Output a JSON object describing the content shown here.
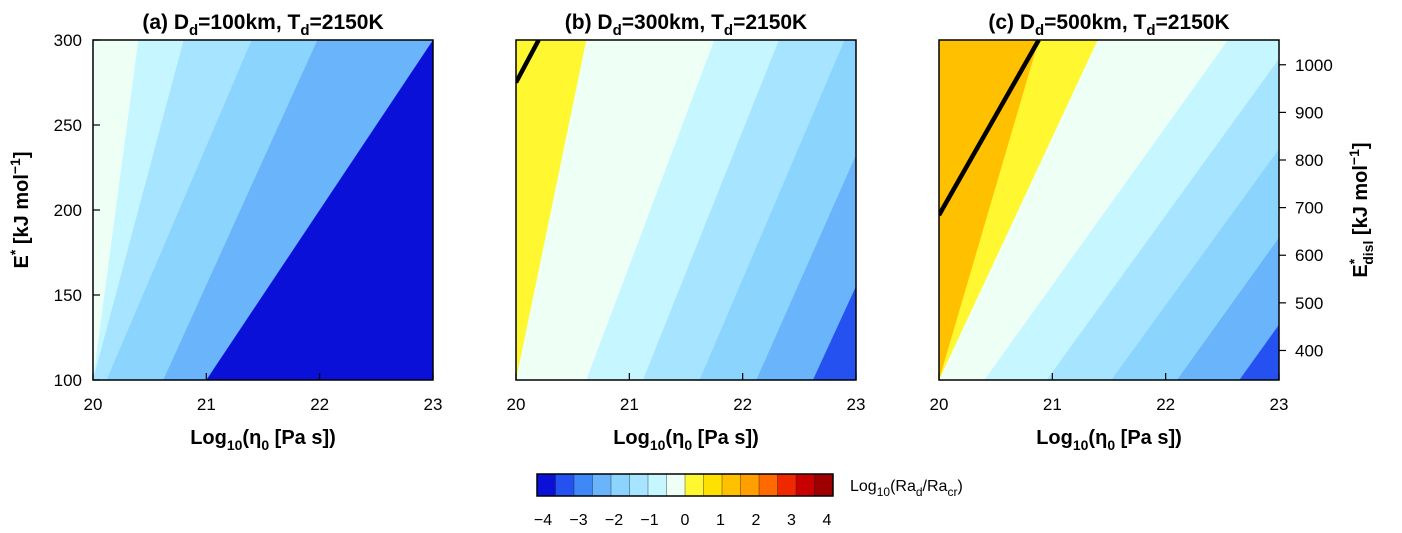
{
  "chart_data": [
    {
      "type": "heatmap",
      "title_main": "(a) D",
      "title_sub1": "d",
      "title_mid": "=100km, T",
      "title_sub2": "d",
      "title_end": "=2150K",
      "x_ticks": [
        "20",
        "21",
        "22",
        "23"
      ],
      "y_ticks": [
        "100",
        "150",
        "200",
        "250",
        "300"
      ],
      "xlim": [
        20,
        23
      ],
      "ylim": [
        100,
        300
      ],
      "xlabel": {
        "pre": "Log",
        "sub": "10",
        "mid": "(η",
        "sub2": "0",
        "post": " [Pa s])"
      },
      "ylabel": {
        "pre": "E",
        "sup": "*",
        "post": " [kJ mol",
        "sup2": "−1",
        "end": "]"
      },
      "log10_ratio_at_left_bottom": -1.5,
      "bands": [
        {
          "x_at_y_min": 20.0,
          "x_at_y_max": 20.0,
          "level": -0.5
        },
        {
          "x_at_y_min": 20.0,
          "x_at_y_max": 20.4,
          "level": -1.0
        },
        {
          "x_at_y_min": 20.0,
          "x_at_y_max": 20.8,
          "level": -1.5
        },
        {
          "x_at_y_min": 20.12,
          "x_at_y_max": 21.4,
          "level": -2.0
        },
        {
          "x_at_y_min": 20.62,
          "x_at_y_max": 21.98,
          "level": -2.5
        },
        {
          "x_at_y_min": 21.0,
          "x_at_y_max": 23.0,
          "level": -4.0
        }
      ]
    },
    {
      "type": "heatmap",
      "title_main": "(b) D",
      "title_sub1": "d",
      "title_mid": "=300km, T",
      "title_sub2": "d",
      "title_end": "=2150K",
      "x_ticks": [
        "20",
        "21",
        "22",
        "23"
      ],
      "y_ticks": [],
      "xlim": [
        20,
        23
      ],
      "ylim": [
        100,
        300
      ],
      "xlabel": {
        "pre": "Log",
        "sub": "10",
        "mid": "(η",
        "sub2": "0",
        "post": " [Pa s])"
      },
      "bands": [
        {
          "x_at_y_min": 20.0,
          "x_at_y_max": 20.2,
          "level": 0.25
        },
        {
          "x_at_y_min": 20.0,
          "x_at_y_max": 20.62,
          "level": -0.25
        },
        {
          "x_at_y_min": 20.15,
          "x_at_y_max": 21.18,
          "level": -0.5
        },
        {
          "x_at_y_min": 20.62,
          "x_at_y_max": 21.75,
          "level": -1.0
        },
        {
          "x_at_y_min": 21.12,
          "x_at_y_max": 22.32,
          "level": -1.5
        },
        {
          "x_at_y_min": 21.62,
          "x_at_y_max": 22.9,
          "level": -2.0
        },
        {
          "x_at_y_min": 22.12,
          "x_at_y_max": 23.45,
          "level": -2.5
        },
        {
          "x_at_y_min": 22.62,
          "x_at_y_max": 24.0,
          "level": -3.5
        }
      ],
      "zero_contour": {
        "x": [
          20.0,
          20.2
        ],
        "y": [
          275,
          300
        ]
      }
    },
    {
      "type": "heatmap",
      "title_main": "(c) D",
      "title_sub1": "d",
      "title_mid": "=500km, T",
      "title_sub2": "d",
      "title_end": "=2150K",
      "x_ticks": [
        "20",
        "21",
        "22",
        "23"
      ],
      "y_ticks_right": [
        "400",
        "500",
        "600",
        "700",
        "800",
        "900",
        "1000"
      ],
      "xlim": [
        20,
        23
      ],
      "ylim": [
        100,
        300
      ],
      "y2lim": [
        338,
        1052
      ],
      "xlabel": {
        "pre": "Log",
        "sub": "10",
        "mid": "(η",
        "sub2": "0",
        "post": " [Pa s])"
      },
      "y2label": {
        "pre": "E",
        "sup": "*",
        "sub": "disl",
        "post": " [kJ mol",
        "sup2": "−1",
        "end": "]"
      },
      "bands": [
        {
          "x_at_y_min": 20.0,
          "x_at_y_max": 20.08,
          "level": 1.0
        },
        {
          "x_at_y_min": 20.0,
          "x_at_y_max": 20.88,
          "level": 0.25
        },
        {
          "x_at_y_min": 20.0,
          "x_at_y_max": 21.4,
          "level": -0.25
        },
        {
          "x_at_y_min": 20.0,
          "x_at_y_max": 21.98,
          "level": -0.5
        },
        {
          "x_at_y_min": 20.4,
          "x_at_y_max": 22.55,
          "level": -1.0
        },
        {
          "x_at_y_min": 20.95,
          "x_at_y_max": 23.12,
          "level": -1.5
        },
        {
          "x_at_y_min": 21.52,
          "x_at_y_max": 23.7,
          "level": -2.0
        },
        {
          "x_at_y_min": 22.1,
          "x_at_y_max": 24.25,
          "level": -2.5
        },
        {
          "x_at_y_min": 22.65,
          "x_at_y_max": 24.8,
          "level": -3.5
        }
      ],
      "zero_contour": {
        "x": [
          20.0,
          20.88
        ],
        "y": [
          197,
          300
        ]
      }
    }
  ],
  "colorbar": {
    "label_pre": "Log",
    "label_sub": "10",
    "label_mid": "(Ra",
    "label_sub2": "d",
    "label_mid2": "/Ra",
    "label_sub3": "cr",
    "label_end": ")",
    "tick_labels": [
      "−4",
      "−3",
      "−2",
      "−1",
      "0",
      "1",
      "2",
      "3",
      "4"
    ],
    "range": [
      -4,
      4
    ],
    "colors": [
      "#0a10d8",
      "#2451f0",
      "#3f88f8",
      "#6ab4fc",
      "#8ad4fe",
      "#a6e4ff",
      "#c6f6ff",
      "#eefff6",
      "#fff830",
      "#ffe100",
      "#ffc000",
      "#ffa000",
      "#ff6a00",
      "#f02800",
      "#c80000",
      "#9e0000"
    ]
  }
}
